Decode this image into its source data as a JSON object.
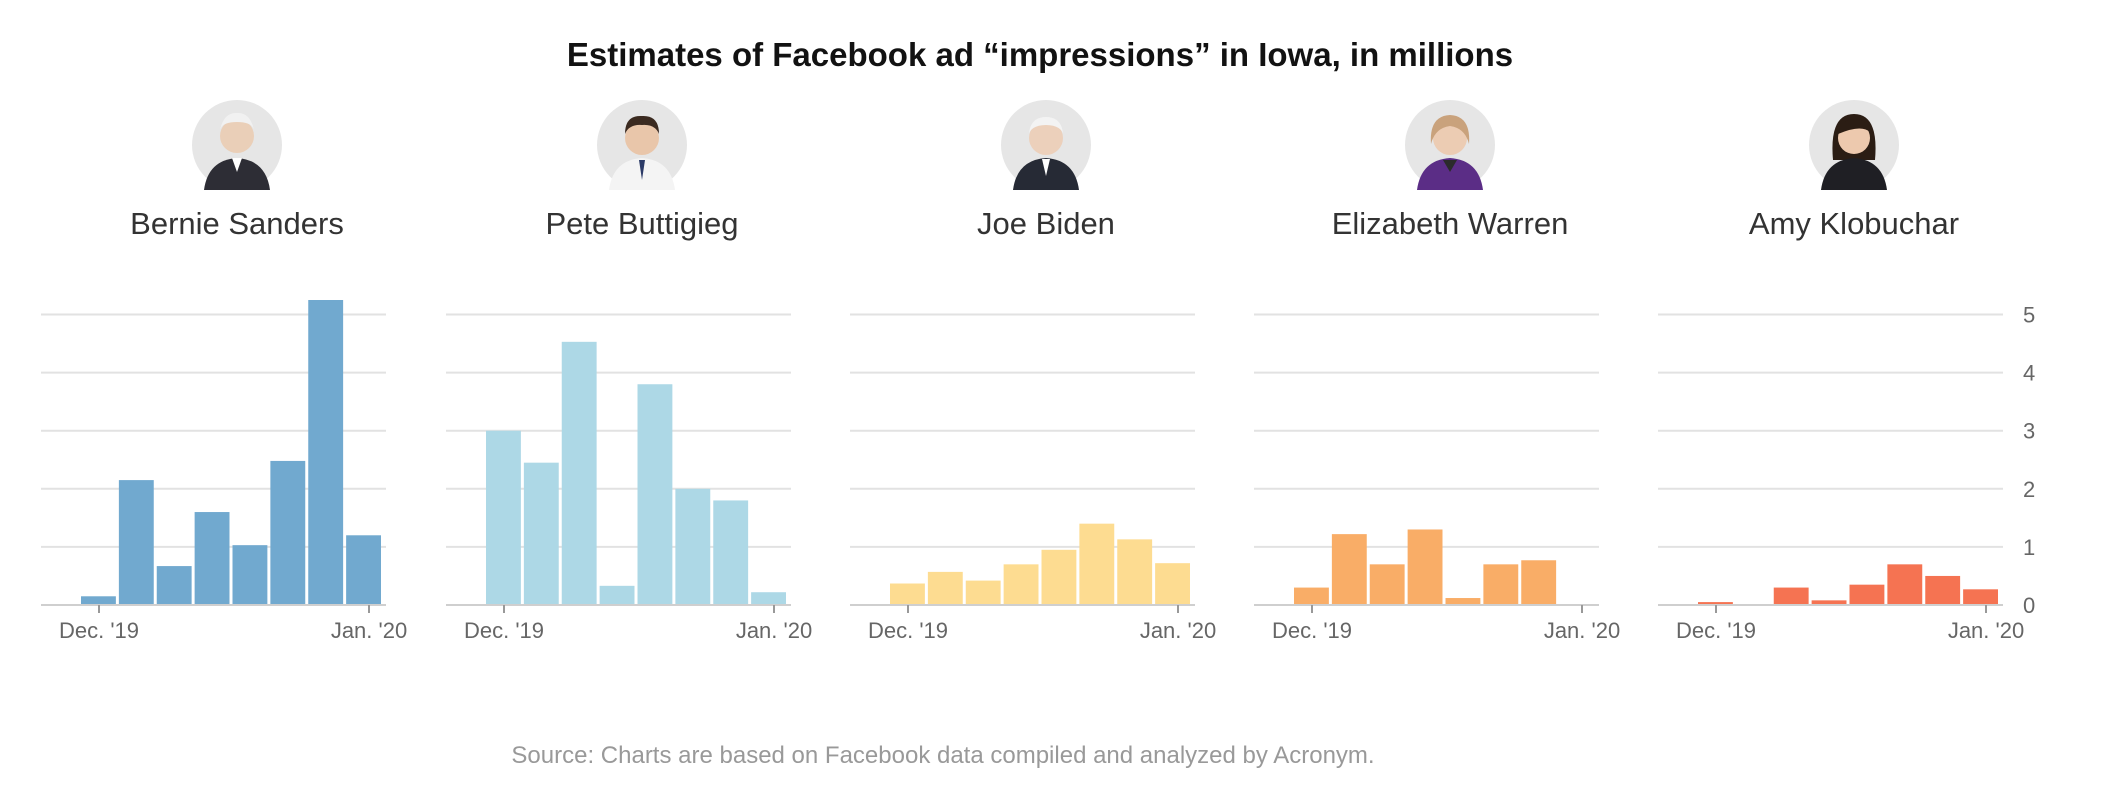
{
  "title": "Estimates of Facebook ad “impressions” in Iowa, in millions",
  "source": "Source: Charts are based on Facebook data compiled and analyzed by Acronym.",
  "chart_data": [
    {
      "type": "bar",
      "name": "Bernie Sanders",
      "color": "#71a9cf",
      "x_start_label": "Dec. '19",
      "x_end_label": "Jan. '20",
      "values": [
        0.15,
        2.15,
        0.67,
        1.6,
        1.03,
        2.48,
        5.25,
        1.2
      ],
      "ylim": [
        0,
        5
      ],
      "yticks": [
        "0",
        "1",
        "2",
        "3",
        "4",
        "5"
      ],
      "grid": true
    },
    {
      "type": "bar",
      "name": "Pete Buttigieg",
      "color": "#add8e6",
      "x_start_label": "Dec. '19",
      "x_end_label": "Jan. '20",
      "values": [
        3.0,
        2.45,
        4.53,
        0.33,
        3.8,
        2.0,
        1.8,
        0.22
      ],
      "ylim": [
        0,
        5
      ],
      "yticks": [
        "0",
        "1",
        "2",
        "3",
        "4",
        "5"
      ],
      "grid": true
    },
    {
      "type": "bar",
      "name": "Joe Biden",
      "color": "#fddc91",
      "x_start_label": "Dec. '19",
      "x_end_label": "Jan. '20",
      "values": [
        0.37,
        0.57,
        0.42,
        0.7,
        0.95,
        1.4,
        1.13,
        0.72
      ],
      "ylim": [
        0,
        5
      ],
      "yticks": [
        "0",
        "1",
        "2",
        "3",
        "4",
        "5"
      ],
      "grid": true
    },
    {
      "type": "bar",
      "name": "Elizabeth Warren",
      "color": "#f9ad67",
      "x_start_label": "Dec. '19",
      "x_end_label": "Jan. '20",
      "values": [
        0.3,
        1.22,
        0.7,
        1.3,
        0.12,
        0.7,
        0.77,
        0
      ],
      "ylim": [
        0,
        5
      ],
      "yticks": [
        "0",
        "1",
        "2",
        "3",
        "4",
        "5"
      ],
      "grid": true
    },
    {
      "type": "bar",
      "name": "Amy Klobuchar",
      "color": "#f57352",
      "x_start_label": "Dec. '19",
      "x_end_label": "Jan. '20",
      "values": [
        0.05,
        0,
        0.3,
        0.08,
        0.35,
        0.7,
        0.5,
        0.27
      ],
      "ylim": [
        0,
        5
      ],
      "yticks": [
        "0",
        "1",
        "2",
        "3",
        "4",
        "5"
      ],
      "grid": true,
      "show_y_axis": true
    }
  ]
}
